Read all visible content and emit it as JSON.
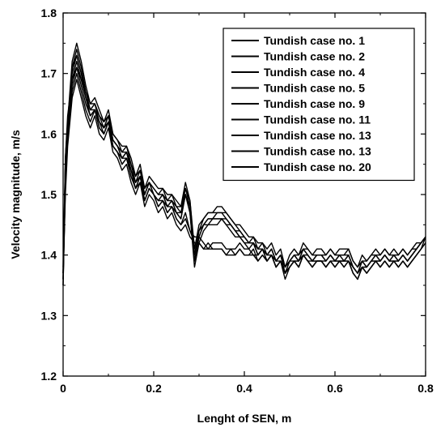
{
  "chart_data": {
    "type": "line",
    "title": "",
    "xlabel": "Lenght of SEN, m",
    "ylabel": "Velocity magnitude, m/s",
    "xlim": [
      0,
      0.8
    ],
    "ylim": [
      1.2,
      1.8
    ],
    "x_ticks": [
      "0",
      "0.2",
      "0.4",
      "0.6",
      "0.8"
    ],
    "y_ticks": [
      "1.2",
      "1.3",
      "1.4",
      "1.5",
      "1.6",
      "1.7",
      "1.8"
    ],
    "grid": false,
    "legend_position": "top-right",
    "line_color": "#000000",
    "x": [
      0,
      0.005,
      0.01,
      0.02,
      0.03,
      0.04,
      0.05,
      0.06,
      0.07,
      0.08,
      0.09,
      0.1,
      0.11,
      0.12,
      0.13,
      0.14,
      0.15,
      0.16,
      0.17,
      0.18,
      0.19,
      0.2,
      0.21,
      0.22,
      0.23,
      0.24,
      0.25,
      0.26,
      0.27,
      0.28,
      0.29,
      0.3,
      0.31,
      0.32,
      0.33,
      0.34,
      0.35,
      0.36,
      0.37,
      0.38,
      0.39,
      0.4,
      0.41,
      0.42,
      0.43,
      0.44,
      0.45,
      0.46,
      0.47,
      0.48,
      0.49,
      0.5,
      0.51,
      0.52,
      0.53,
      0.54,
      0.55,
      0.56,
      0.57,
      0.58,
      0.59,
      0.6,
      0.61,
      0.62,
      0.63,
      0.64,
      0.65,
      0.66,
      0.67,
      0.68,
      0.69,
      0.7,
      0.71,
      0.72,
      0.73,
      0.74,
      0.75,
      0.76,
      0.77,
      0.78,
      0.79,
      0.8
    ],
    "series": [
      {
        "name": "Tundish case no. 1",
        "values": [
          1.36,
          1.5,
          1.58,
          1.66,
          1.69,
          1.66,
          1.63,
          1.61,
          1.63,
          1.6,
          1.59,
          1.61,
          1.57,
          1.56,
          1.54,
          1.55,
          1.52,
          1.5,
          1.52,
          1.48,
          1.5,
          1.49,
          1.47,
          1.48,
          1.46,
          1.47,
          1.45,
          1.44,
          1.45,
          1.43,
          1.42,
          1.42,
          1.41,
          1.42,
          1.41,
          1.41,
          1.41,
          1.4,
          1.41,
          1.4,
          1.41,
          1.4,
          1.4,
          1.41,
          1.39,
          1.4,
          1.39,
          1.4,
          1.38,
          1.39,
          1.37,
          1.38,
          1.39,
          1.38,
          1.4,
          1.39,
          1.38,
          1.39,
          1.39,
          1.38,
          1.39,
          1.38,
          1.39,
          1.38,
          1.39,
          1.37,
          1.36,
          1.38,
          1.37,
          1.38,
          1.39,
          1.38,
          1.39,
          1.38,
          1.39,
          1.38,
          1.39,
          1.38,
          1.39,
          1.4,
          1.41,
          1.42
        ]
      },
      {
        "name": "Tundish case no. 2",
        "values": [
          1.37,
          1.51,
          1.59,
          1.67,
          1.7,
          1.67,
          1.64,
          1.62,
          1.64,
          1.61,
          1.6,
          1.62,
          1.58,
          1.57,
          1.55,
          1.56,
          1.53,
          1.51,
          1.53,
          1.49,
          1.51,
          1.5,
          1.48,
          1.49,
          1.47,
          1.48,
          1.46,
          1.45,
          1.46,
          1.44,
          1.43,
          1.43,
          1.42,
          1.41,
          1.42,
          1.42,
          1.42,
          1.41,
          1.41,
          1.41,
          1.42,
          1.41,
          1.41,
          1.4,
          1.4,
          1.41,
          1.4,
          1.41,
          1.39,
          1.4,
          1.38,
          1.39,
          1.4,
          1.39,
          1.41,
          1.4,
          1.39,
          1.4,
          1.4,
          1.39,
          1.4,
          1.39,
          1.4,
          1.39,
          1.4,
          1.38,
          1.37,
          1.39,
          1.38,
          1.39,
          1.4,
          1.39,
          1.4,
          1.39,
          1.4,
          1.39,
          1.4,
          1.39,
          1.4,
          1.41,
          1.42,
          1.43
        ]
      },
      {
        "name": "Tundish case no. 4",
        "values": [
          1.35,
          1.53,
          1.6,
          1.68,
          1.71,
          1.68,
          1.65,
          1.63,
          1.64,
          1.62,
          1.6,
          1.62,
          1.58,
          1.57,
          1.56,
          1.56,
          1.54,
          1.51,
          1.53,
          1.49,
          1.51,
          1.5,
          1.49,
          1.49,
          1.48,
          1.48,
          1.47,
          1.46,
          1.5,
          1.47,
          1.38,
          1.42,
          1.44,
          1.45,
          1.45,
          1.45,
          1.46,
          1.45,
          1.44,
          1.43,
          1.43,
          1.42,
          1.41,
          1.42,
          1.4,
          1.41,
          1.39,
          1.4,
          1.38,
          1.39,
          1.36,
          1.38,
          1.39,
          1.38,
          1.4,
          1.39,
          1.38,
          1.39,
          1.39,
          1.38,
          1.39,
          1.38,
          1.39,
          1.39,
          1.39,
          1.37,
          1.36,
          1.38,
          1.37,
          1.38,
          1.39,
          1.38,
          1.39,
          1.38,
          1.39,
          1.38,
          1.39,
          1.38,
          1.39,
          1.4,
          1.41,
          1.42
        ]
      },
      {
        "name": "Tundish case no. 5",
        "values": [
          1.36,
          1.54,
          1.61,
          1.69,
          1.72,
          1.69,
          1.66,
          1.64,
          1.64,
          1.62,
          1.61,
          1.62,
          1.59,
          1.58,
          1.56,
          1.57,
          1.54,
          1.52,
          1.53,
          1.5,
          1.52,
          1.5,
          1.49,
          1.5,
          1.48,
          1.49,
          1.47,
          1.47,
          1.5,
          1.48,
          1.39,
          1.43,
          1.45,
          1.46,
          1.46,
          1.46,
          1.46,
          1.46,
          1.45,
          1.44,
          1.43,
          1.43,
          1.42,
          1.42,
          1.4,
          1.41,
          1.4,
          1.4,
          1.39,
          1.39,
          1.37,
          1.39,
          1.39,
          1.39,
          1.4,
          1.4,
          1.39,
          1.39,
          1.39,
          1.39,
          1.4,
          1.39,
          1.39,
          1.39,
          1.4,
          1.38,
          1.37,
          1.38,
          1.38,
          1.39,
          1.39,
          1.39,
          1.4,
          1.39,
          1.39,
          1.39,
          1.4,
          1.39,
          1.4,
          1.41,
          1.42,
          1.43
        ]
      },
      {
        "name": "Tundish case no. 9",
        "values": [
          1.37,
          1.55,
          1.62,
          1.7,
          1.73,
          1.7,
          1.67,
          1.64,
          1.65,
          1.63,
          1.61,
          1.63,
          1.59,
          1.58,
          1.57,
          1.57,
          1.55,
          1.52,
          1.54,
          1.5,
          1.52,
          1.51,
          1.5,
          1.5,
          1.49,
          1.49,
          1.48,
          1.47,
          1.51,
          1.48,
          1.4,
          1.44,
          1.45,
          1.46,
          1.46,
          1.47,
          1.47,
          1.46,
          1.45,
          1.44,
          1.44,
          1.43,
          1.42,
          1.42,
          1.41,
          1.41,
          1.4,
          1.41,
          1.39,
          1.4,
          1.37,
          1.39,
          1.4,
          1.39,
          1.41,
          1.4,
          1.39,
          1.4,
          1.4,
          1.39,
          1.4,
          1.39,
          1.4,
          1.4,
          1.4,
          1.38,
          1.37,
          1.39,
          1.38,
          1.39,
          1.4,
          1.39,
          1.4,
          1.39,
          1.4,
          1.39,
          1.4,
          1.39,
          1.4,
          1.41,
          1.42,
          1.43
        ]
      },
      {
        "name": "Tundish case no. 11",
        "values": [
          1.36,
          1.55,
          1.61,
          1.71,
          1.74,
          1.71,
          1.67,
          1.65,
          1.65,
          1.63,
          1.62,
          1.63,
          1.6,
          1.59,
          1.57,
          1.58,
          1.55,
          1.53,
          1.54,
          1.51,
          1.52,
          1.51,
          1.5,
          1.51,
          1.49,
          1.5,
          1.48,
          1.48,
          1.51,
          1.49,
          1.4,
          1.44,
          1.46,
          1.47,
          1.47,
          1.47,
          1.47,
          1.47,
          1.46,
          1.45,
          1.44,
          1.43,
          1.42,
          1.43,
          1.41,
          1.42,
          1.4,
          1.41,
          1.39,
          1.4,
          1.38,
          1.39,
          1.4,
          1.4,
          1.41,
          1.41,
          1.4,
          1.4,
          1.4,
          1.4,
          1.41,
          1.4,
          1.4,
          1.4,
          1.41,
          1.39,
          1.38,
          1.39,
          1.39,
          1.4,
          1.4,
          1.4,
          1.41,
          1.4,
          1.4,
          1.4,
          1.41,
          1.4,
          1.41,
          1.41,
          1.42,
          1.43
        ]
      },
      {
        "name": "Tundish case no. 13",
        "values": [
          1.38,
          1.56,
          1.62,
          1.72,
          1.75,
          1.72,
          1.68,
          1.65,
          1.66,
          1.64,
          1.62,
          1.64,
          1.6,
          1.59,
          1.58,
          1.58,
          1.56,
          1.53,
          1.55,
          1.51,
          1.53,
          1.52,
          1.51,
          1.51,
          1.5,
          1.5,
          1.49,
          1.48,
          1.52,
          1.49,
          1.41,
          1.45,
          1.46,
          1.47,
          1.47,
          1.48,
          1.48,
          1.47,
          1.46,
          1.45,
          1.45,
          1.44,
          1.43,
          1.43,
          1.42,
          1.42,
          1.41,
          1.42,
          1.4,
          1.41,
          1.38,
          1.4,
          1.41,
          1.4,
          1.42,
          1.41,
          1.4,
          1.41,
          1.41,
          1.4,
          1.41,
          1.4,
          1.41,
          1.41,
          1.41,
          1.39,
          1.38,
          1.4,
          1.39,
          1.4,
          1.41,
          1.4,
          1.41,
          1.4,
          1.41,
          1.4,
          1.41,
          1.4,
          1.41,
          1.42,
          1.42,
          1.43
        ]
      },
      {
        "name": "Tundish case no. 13",
        "values": [
          1.37,
          1.56,
          1.63,
          1.69,
          1.71,
          1.69,
          1.66,
          1.64,
          1.65,
          1.62,
          1.61,
          1.63,
          1.59,
          1.58,
          1.56,
          1.57,
          1.54,
          1.52,
          1.53,
          1.5,
          1.52,
          1.5,
          1.49,
          1.5,
          1.48,
          1.49,
          1.47,
          1.46,
          1.5,
          1.47,
          1.39,
          1.43,
          1.45,
          1.45,
          1.46,
          1.46,
          1.46,
          1.45,
          1.45,
          1.44,
          1.43,
          1.42,
          1.42,
          1.42,
          1.4,
          1.41,
          1.39,
          1.4,
          1.38,
          1.39,
          1.37,
          1.38,
          1.39,
          1.39,
          1.4,
          1.39,
          1.39,
          1.39,
          1.39,
          1.38,
          1.39,
          1.39,
          1.39,
          1.39,
          1.39,
          1.38,
          1.37,
          1.38,
          1.38,
          1.39,
          1.39,
          1.39,
          1.4,
          1.39,
          1.39,
          1.39,
          1.4,
          1.39,
          1.4,
          1.41,
          1.42,
          1.43
        ]
      },
      {
        "name": "Tundish case no. 20",
        "values": [
          1.35,
          1.52,
          1.6,
          1.71,
          1.73,
          1.7,
          1.66,
          1.63,
          1.64,
          1.61,
          1.6,
          1.62,
          1.58,
          1.57,
          1.55,
          1.56,
          1.53,
          1.51,
          1.52,
          1.49,
          1.51,
          1.5,
          1.48,
          1.49,
          1.47,
          1.48,
          1.46,
          1.45,
          1.47,
          1.44,
          1.42,
          1.42,
          1.41,
          1.41,
          1.41,
          1.41,
          1.41,
          1.4,
          1.4,
          1.4,
          1.41,
          1.4,
          1.4,
          1.4,
          1.39,
          1.4,
          1.39,
          1.4,
          1.38,
          1.39,
          1.37,
          1.38,
          1.39,
          1.38,
          1.4,
          1.39,
          1.38,
          1.39,
          1.39,
          1.38,
          1.39,
          1.38,
          1.39,
          1.38,
          1.39,
          1.37,
          1.36,
          1.38,
          1.37,
          1.38,
          1.39,
          1.38,
          1.39,
          1.38,
          1.39,
          1.38,
          1.39,
          1.38,
          1.39,
          1.4,
          1.41,
          1.43
        ]
      }
    ]
  }
}
